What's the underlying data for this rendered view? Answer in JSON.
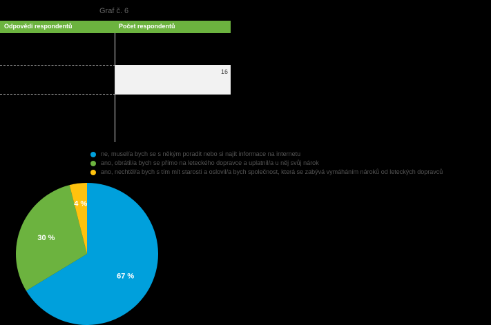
{
  "graph_title": "Graf č. 6",
  "table": {
    "col1": "Odpovědi respondentů",
    "col2": "Počet respondentů",
    "visible_value": "16"
  },
  "chart_data": {
    "type": "pie",
    "labels": [
      "ne, musel/a bych se s někým poradit nebo si najít informace na internetu",
      "ano, obrátil/a bych se přímo na leteckého dopravce a uplatnil/a u něj svůj nárok",
      "ano, nechtěl/a bych s tím mít starosti a oslovil/a bych společnost, která se zabývá vymáháním nároků od leteckých dopravců"
    ],
    "values": [
      67,
      30,
      4
    ],
    "value_labels": [
      "67 %",
      "30 %",
      "4 %"
    ],
    "colors": [
      "#00a0dc",
      "#6cb33f",
      "#ffc20e"
    ],
    "legend_position": "top-right"
  }
}
